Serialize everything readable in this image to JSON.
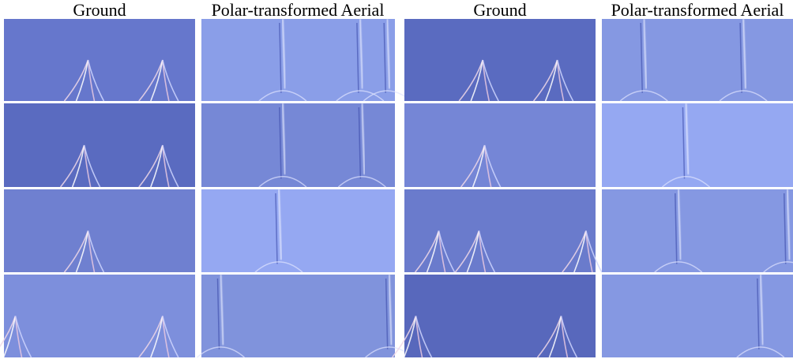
{
  "headers": [
    "Ground",
    "Polar-transformed Aerial",
    "Ground",
    "Polar-transformed Aerial"
  ]
}
